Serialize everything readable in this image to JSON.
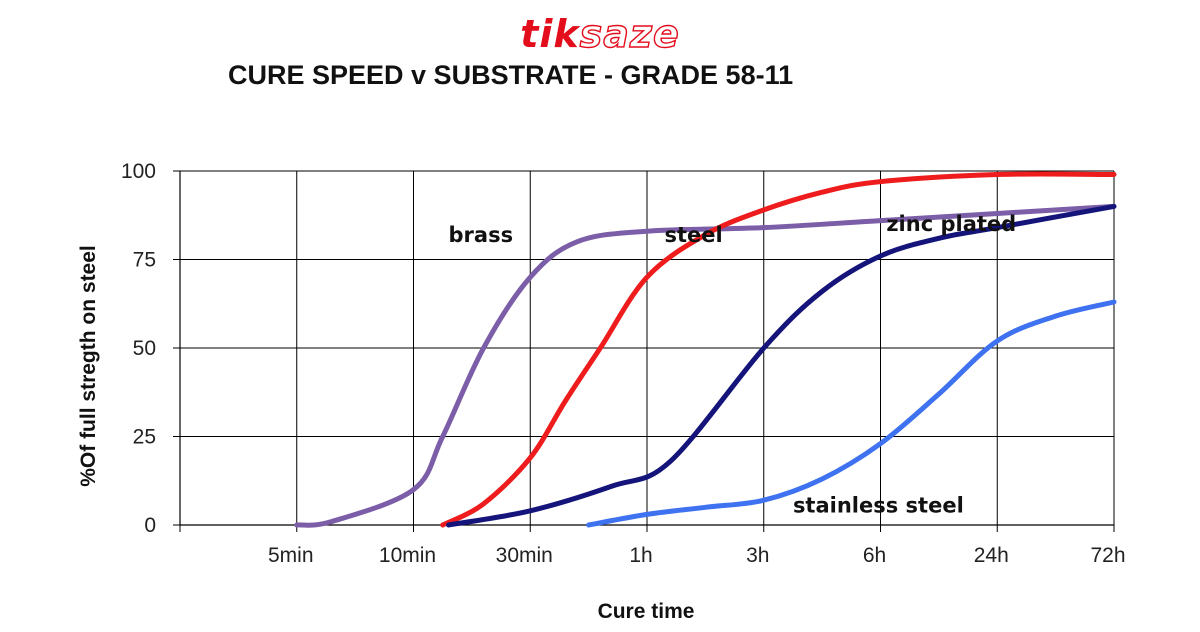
{
  "logo": {
    "part1": "tik",
    "part2": "saze"
  },
  "chart_data": {
    "type": "line",
    "title": "CURE SPEED v SUBSTRATE - GRADE 58-11",
    "xlabel": "Cure time",
    "ylabel": "%Of full stregth on steel",
    "categories": [
      "5min",
      "10min",
      "30min",
      "1h",
      "3h",
      "6h",
      "24h",
      "72h"
    ],
    "ylim": [
      0,
      100
    ],
    "yticks": [
      0,
      25,
      50,
      75,
      100
    ],
    "grid": true,
    "legend": "none",
    "series": [
      {
        "name": "brass",
        "color": "#7b5ea7",
        "x": [
          0,
          0.3,
          1,
          1.25,
          1.6,
          2,
          2.4,
          3,
          4,
          5,
          6,
          7
        ],
        "y": [
          0,
          1,
          10,
          25,
          50,
          70,
          80,
          83,
          84,
          86,
          88,
          90
        ]
      },
      {
        "name": "steel",
        "color": "#ee1c1c",
        "x": [
          1.25,
          1.6,
          2,
          2.3,
          2.6,
          3,
          3.5,
          4,
          4.5,
          5,
          6,
          7
        ],
        "y": [
          0,
          6,
          19,
          35,
          50,
          70,
          82,
          89,
          94,
          97,
          99,
          99
        ]
      },
      {
        "name": "zinc plated",
        "color": "#14147a",
        "x": [
          1.3,
          2,
          2.7,
          3.2,
          4,
          4.5,
          5,
          5.5,
          6,
          7
        ],
        "y": [
          0,
          4,
          11,
          18,
          50,
          66,
          76,
          81,
          84,
          90
        ]
      },
      {
        "name": "stainless steel",
        "color": "#3f72f0",
        "x": [
          2.5,
          3,
          3.5,
          4,
          4.5,
          5,
          5.5,
          6,
          6.5,
          7
        ],
        "y": [
          0,
          3,
          5,
          7,
          13,
          23,
          37,
          52,
          59,
          63
        ]
      }
    ]
  }
}
